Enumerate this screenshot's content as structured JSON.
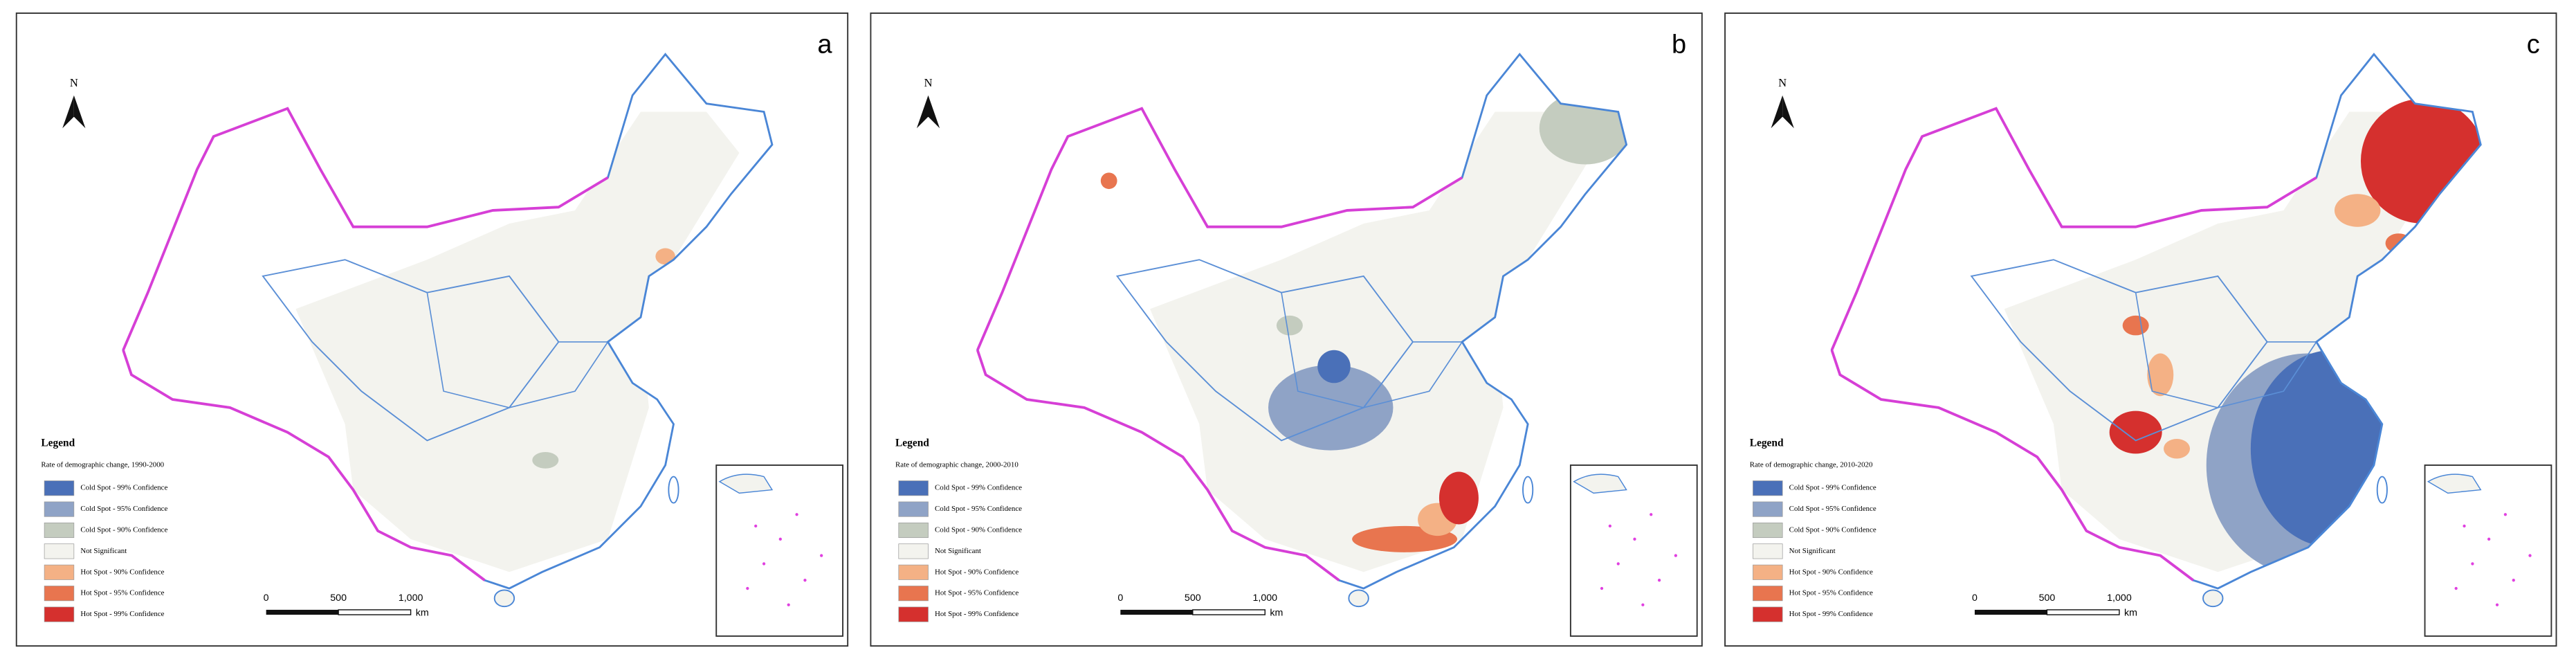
{
  "panels": [
    {
      "label": "a",
      "north": "N",
      "legend": {
        "title": "Legend",
        "subtitle": "Rate of demographic change, 1990-2000",
        "items": [
          {
            "label": "Cold Spot - 99% Confidence",
            "color": "#4a70b8"
          },
          {
            "label": "Cold Spot - 95% Confidence",
            "color": "#8fa3c6"
          },
          {
            "label": "Cold Spot - 90% Confidence",
            "color": "#c4ccbf"
          },
          {
            "label": "Not Significant",
            "color": "#f3f3ee"
          },
          {
            "label": "Hot Spot - 90% Confidence",
            "color": "#f4b185"
          },
          {
            "label": "Hot Spot - 95% Confidence",
            "color": "#e8754f"
          },
          {
            "label": "Hot Spot - 99% Confidence",
            "color": "#d5302e"
          }
        ]
      },
      "scale": {
        "ticks": [
          "0",
          "500",
          "1,000"
        ],
        "unit": "km"
      }
    },
    {
      "label": "b",
      "north": "N",
      "legend": {
        "title": "Legend",
        "subtitle": "Rate of demographic change, 2000-2010",
        "items": [
          {
            "label": "Cold Spot - 99% Confidence",
            "color": "#4a70b8"
          },
          {
            "label": "Cold Spot - 95% Confidence",
            "color": "#8fa3c6"
          },
          {
            "label": "Cold Spot - 90% Confidence",
            "color": "#c4ccbf"
          },
          {
            "label": "Not Significant",
            "color": "#f3f3ee"
          },
          {
            "label": "Hot Spot - 90% Confidence",
            "color": "#f4b185"
          },
          {
            "label": "Hot Spot - 95% Confidence",
            "color": "#e8754f"
          },
          {
            "label": "Hot Spot - 99% Confidence",
            "color": "#d5302e"
          }
        ]
      },
      "scale": {
        "ticks": [
          "0",
          "500",
          "1,000"
        ],
        "unit": "km"
      }
    },
    {
      "label": "c",
      "north": "N",
      "legend": {
        "title": "Legend",
        "subtitle": "Rate of demographic change, 2010-2020",
        "items": [
          {
            "label": "Cold Spot - 99% Confidence",
            "color": "#4a70b8"
          },
          {
            "label": "Cold Spot - 95% Confidence",
            "color": "#8fa3c6"
          },
          {
            "label": "Cold Spot - 90% Confidence",
            "color": "#c4ccbf"
          },
          {
            "label": "Not Significant",
            "color": "#f3f3ee"
          },
          {
            "label": "Hot Spot - 90% Confidence",
            "color": "#f4b185"
          },
          {
            "label": "Hot Spot - 95% Confidence",
            "color": "#e8754f"
          },
          {
            "label": "Hot Spot - 99% Confidence",
            "color": "#d5302e"
          }
        ]
      },
      "scale": {
        "ticks": [
          "0",
          "500",
          "1,000"
        ],
        "unit": "km"
      }
    }
  ]
}
